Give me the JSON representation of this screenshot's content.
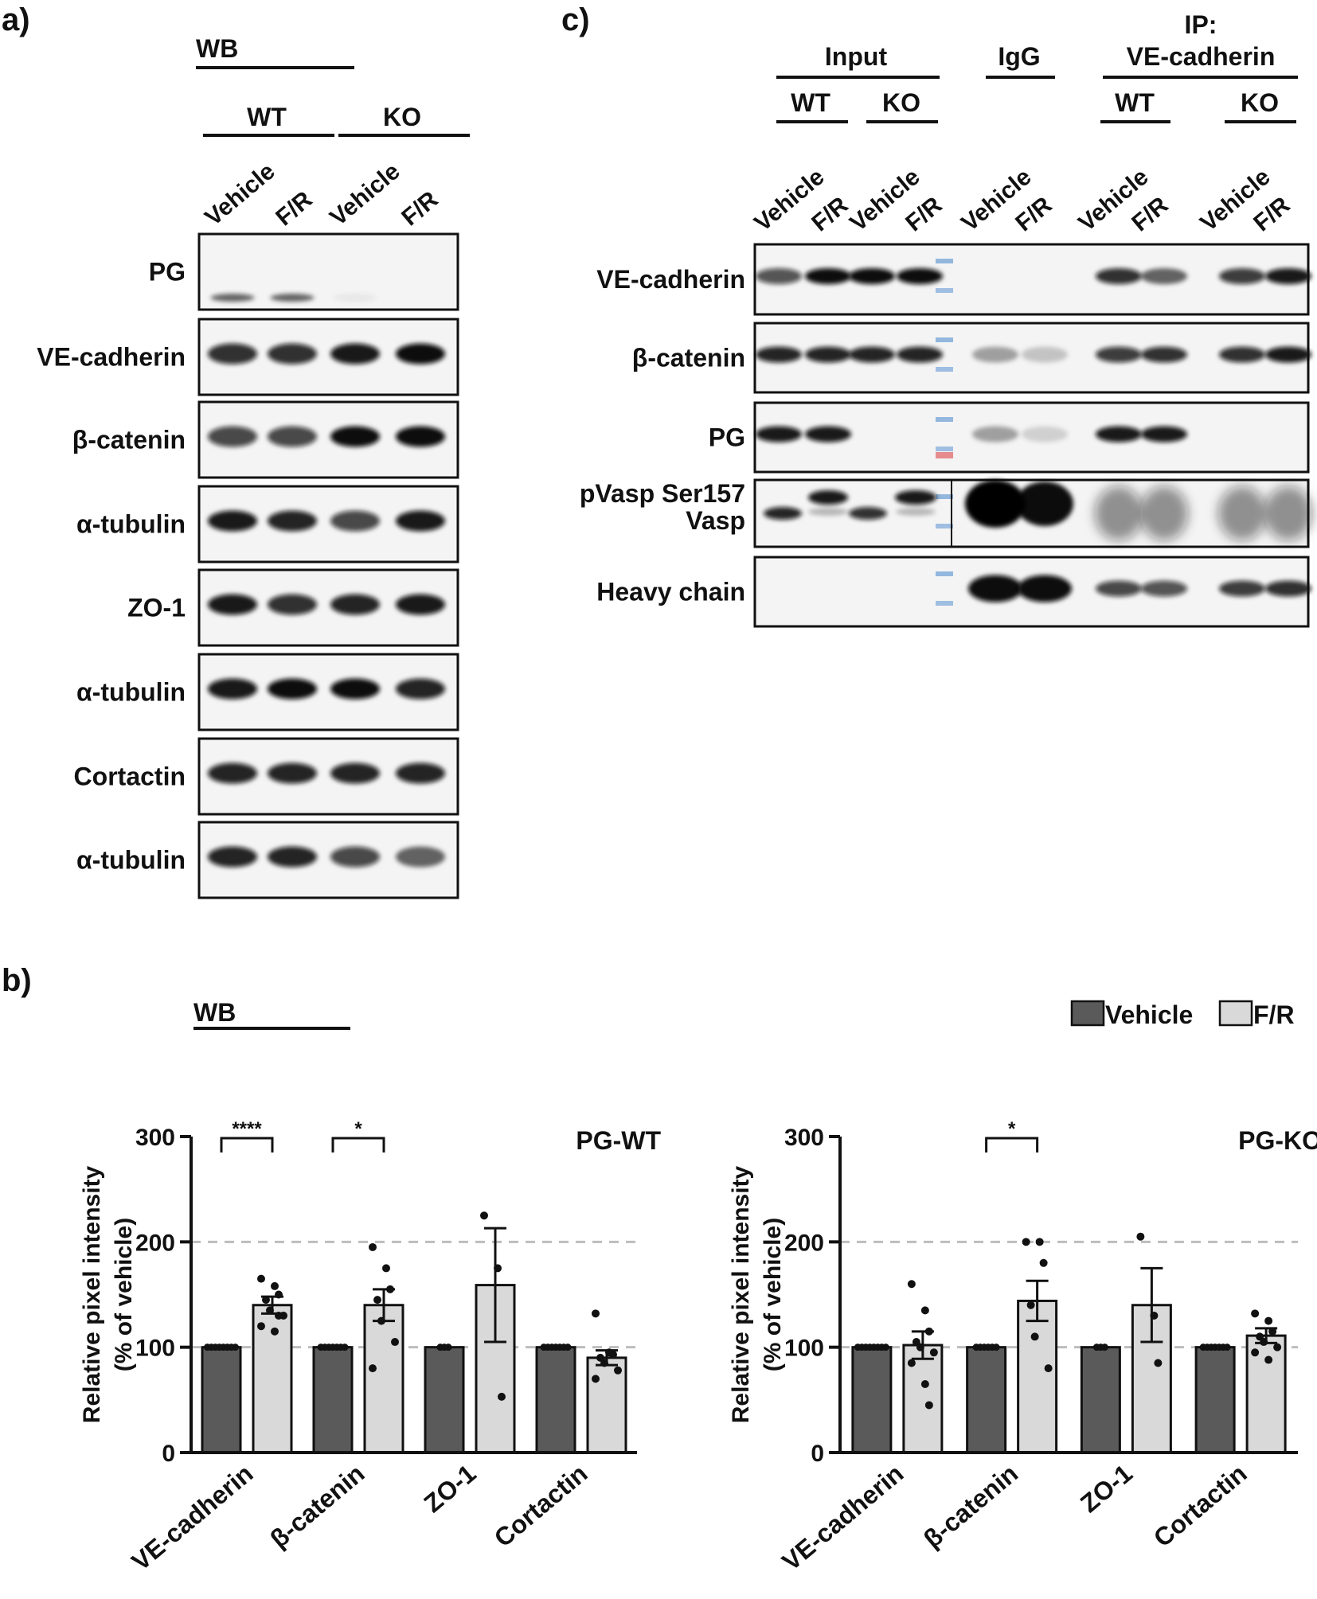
{
  "panel_a": {
    "label": "a)",
    "header": "WB",
    "groups": [
      "WT",
      "KO"
    ],
    "lanes": [
      "Vehicle",
      "F/R",
      "Vehicle",
      "F/R"
    ],
    "blots": [
      "PG",
      "VE-cadherin",
      "β-catenin",
      "α-tubulin",
      "ZO-1",
      "α-tubulin",
      "Cortactin",
      "α-tubulin"
    ]
  },
  "panel_b": {
    "label": "b)",
    "header": "WB",
    "legend": {
      "vehicle": "Vehicle",
      "fr": "F/R"
    },
    "colors": {
      "vehicle": "#5a5a5a",
      "fr": "#d9d9d9"
    }
  },
  "panel_c": {
    "label": "c)",
    "groups": {
      "input": "Input",
      "igg": "IgG",
      "ip_line1": "IP:",
      "ip_line2": "VE-cadherin"
    },
    "subgroups": [
      "WT",
      "KO",
      "WT",
      "KO"
    ],
    "lanes": [
      "Vehicle",
      "F/R",
      "Vehicle",
      "F/R",
      "Vehicle",
      "F/R",
      "Vehicle",
      "F/R",
      "Vehicle",
      "F/R"
    ],
    "blots": [
      "VE-cadherin",
      "β-catenin",
      "PG",
      "pVasp Ser157",
      "Vasp",
      "Heavy chain"
    ]
  },
  "chart_data": [
    {
      "type": "bar",
      "title": "PG-WT",
      "ylabel": [
        "Relative pixel intensity",
        "(% of vehicle)"
      ],
      "xlabel": "",
      "categories": [
        "VE-cadherin",
        "β-catenin",
        "ZO-1",
        "Cortactin"
      ],
      "series": [
        {
          "name": "Vehicle",
          "values": [
            100,
            100,
            100,
            100
          ]
        },
        {
          "name": "F/R",
          "values": [
            140,
            140,
            159,
            90
          ],
          "sem": [
            8,
            15,
            54,
            7
          ]
        }
      ],
      "points": [
        [
          100,
          100,
          100,
          100,
          100,
          100,
          100,
          100
        ],
        [
          100,
          100,
          100,
          100,
          100,
          100,
          100
        ],
        [
          100,
          100,
          100
        ],
        [
          100,
          100,
          100,
          100,
          100,
          100,
          100
        ]
      ],
      "fr_points": [
        [
          165,
          158,
          150,
          145,
          135,
          130,
          120,
          115,
          130
        ],
        [
          195,
          175,
          155,
          145,
          125,
          105,
          80
        ],
        [
          225,
          175,
          53
        ],
        [
          132,
          95,
          93,
          90,
          85,
          78,
          70
        ]
      ],
      "ylim": [
        0,
        300
      ],
      "yticks": [
        0,
        100,
        200,
        300
      ],
      "gridlines": [
        100,
        200
      ],
      "significance": [
        {
          "category": 0,
          "label": "****"
        },
        {
          "category": 1,
          "label": "*"
        }
      ]
    },
    {
      "type": "bar",
      "title": "PG-KO",
      "ylabel": [
        "Relative pixel intensity",
        "(% of vehicle)"
      ],
      "xlabel": "",
      "categories": [
        "VE-cadherin",
        "β-catenin",
        "ZO-1",
        "Cortactin"
      ],
      "series": [
        {
          "name": "Vehicle",
          "values": [
            100,
            100,
            100,
            100
          ]
        },
        {
          "name": "F/R",
          "values": [
            102,
            144,
            140,
            111
          ],
          "sem": [
            13,
            19,
            35,
            7
          ]
        }
      ],
      "points": [
        [
          100,
          100,
          100,
          100,
          100,
          100,
          100,
          100
        ],
        [
          100,
          100,
          100,
          100,
          100,
          100
        ],
        [
          100,
          100,
          100
        ],
        [
          100,
          100,
          100,
          100,
          100,
          100,
          100
        ]
      ],
      "fr_points": [
        [
          160,
          135,
          115,
          105,
          100,
          95,
          85,
          65,
          45
        ],
        [
          200,
          200,
          180,
          140,
          110,
          80
        ],
        [
          205,
          130,
          85
        ],
        [
          132,
          125,
          115,
          110,
          105,
          100,
          95,
          88
        ]
      ],
      "ylim": [
        0,
        300
      ],
      "yticks": [
        0,
        100,
        200,
        300
      ],
      "gridlines": [
        100,
        200
      ],
      "significance": [
        {
          "category": 1,
          "label": "*"
        }
      ]
    }
  ]
}
